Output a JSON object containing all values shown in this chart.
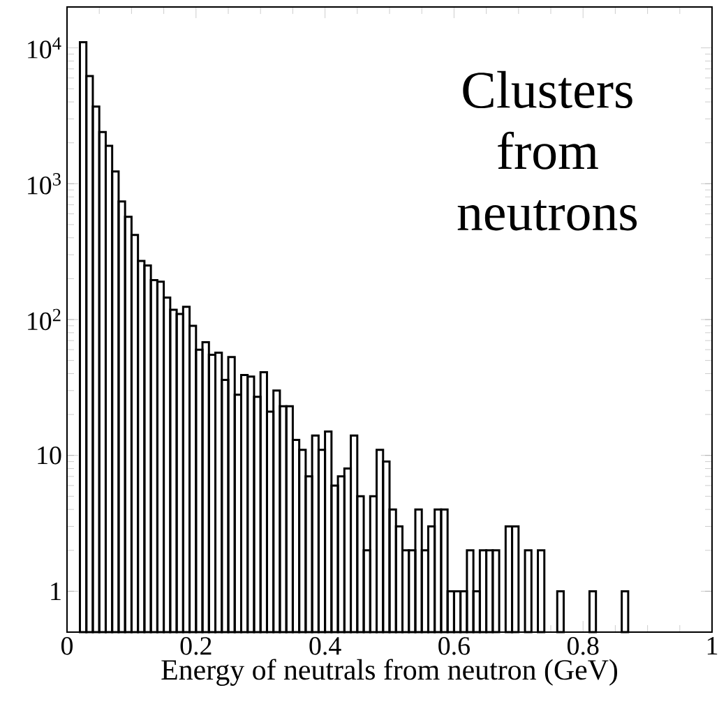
{
  "chart_data": {
    "type": "histogram",
    "xlabel": "Energy of neutrals from neutron (GeV)",
    "annotations": [
      "Clusters from neutrons"
    ],
    "bins": [
      0.02,
      0.03,
      0.04,
      0.05,
      0.06,
      0.07,
      0.08,
      0.09,
      0.1,
      0.11,
      0.12,
      0.13,
      0.14,
      0.15,
      0.16,
      0.17,
      0.18,
      0.19,
      0.2,
      0.21,
      0.22,
      0.23,
      0.24,
      0.25,
      0.26,
      0.27,
      0.28,
      0.29,
      0.3,
      0.31,
      0.32,
      0.33,
      0.34,
      0.35,
      0.36,
      0.37,
      0.38,
      0.39,
      0.4,
      0.41,
      0.42,
      0.43,
      0.44,
      0.45,
      0.46,
      0.47,
      0.48,
      0.49,
      0.5,
      0.51,
      0.52,
      0.53,
      0.54,
      0.55,
      0.56,
      0.57,
      0.58,
      0.59,
      0.6,
      0.61,
      0.62,
      0.63,
      0.64,
      0.65,
      0.66,
      0.67,
      0.68,
      0.69,
      0.7,
      0.71,
      0.72,
      0.73,
      0.74,
      0.75,
      0.76,
      0.77,
      0.78,
      0.79,
      0.8,
      0.81,
      0.82,
      0.83,
      0.84,
      0.85,
      0.86,
      0.87
    ],
    "values": [
      11000,
      6200,
      3700,
      2400,
      1900,
      1230,
      740,
      570,
      420,
      270,
      250,
      195,
      190,
      145,
      118,
      110,
      124,
      90,
      60,
      68,
      55,
      57,
      36,
      53,
      28,
      39,
      38,
      27,
      41,
      21,
      30,
      23,
      23,
      13,
      11,
      7,
      14,
      11,
      15,
      6,
      7,
      8,
      14,
      5,
      2,
      5,
      11,
      9,
      4,
      3,
      2,
      2,
      4,
      2,
      3,
      4,
      4,
      1,
      1,
      1,
      2,
      1,
      2,
      2,
      2,
      null,
      3,
      3,
      null,
      2,
      null,
      2,
      null,
      null,
      1,
      null,
      null,
      null,
      null,
      1,
      null,
      null,
      null,
      null,
      1
    ],
    "color": "#000000",
    "log": "y",
    "xlim": [
      0,
      1
    ],
    "xticks": [
      0,
      0.2,
      0.4,
      0.6,
      0.8,
      1
    ],
    "ylim": [
      0.5,
      20000
    ],
    "yticks": [
      1,
      10,
      {
        "value": 100,
        "label": "10$^{2}$"
      },
      {
        "value": 1000,
        "label": "10$^{3}$"
      },
      {
        "value": 10000,
        "label": "10$^{4}$"
      }
    ]
  }
}
